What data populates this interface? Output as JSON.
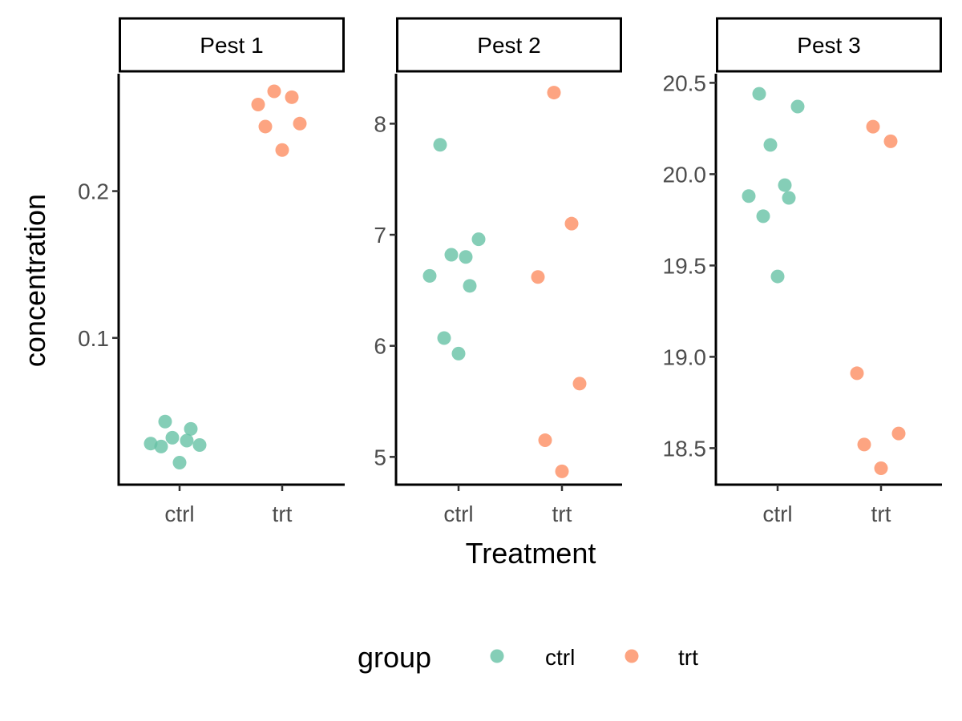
{
  "chart_data": {
    "type": "scatter",
    "xlabel": "Treatment",
    "ylabel": "concentration",
    "categories": [
      "ctrl",
      "trt"
    ],
    "colors": {
      "ctrl": "#66c2a5",
      "trt": "#fc8d62"
    },
    "legend": {
      "title": "group",
      "position": "bottom",
      "entries": [
        {
          "label": "ctrl",
          "color": "#66c2a5"
        },
        {
          "label": "trt",
          "color": "#fc8d62"
        }
      ]
    },
    "grid": false,
    "panels": [
      {
        "title": "Pest 1",
        "ylim": [
          0.0,
          0.28
        ],
        "yticks": [
          {
            "value": 0.1,
            "label": "0.1"
          },
          {
            "value": 0.2,
            "label": "0.2"
          }
        ],
        "series": [
          {
            "name": "ctrl",
            "points": [
              {
                "x": "ctrl",
                "y": 0.028
              },
              {
                "x": "ctrl",
                "y": 0.026
              },
              {
                "x": "ctrl",
                "y": 0.043
              },
              {
                "x": "ctrl",
                "y": 0.032
              },
              {
                "x": "ctrl",
                "y": 0.015
              },
              {
                "x": "ctrl",
                "y": 0.03
              },
              {
                "x": "ctrl",
                "y": 0.038
              },
              {
                "x": "ctrl",
                "y": 0.027
              }
            ]
          },
          {
            "name": "trt",
            "points": [
              {
                "x": "trt",
                "y": 0.259
              },
              {
                "x": "trt",
                "y": 0.244
              },
              {
                "x": "trt",
                "y": 0.268
              },
              {
                "x": "trt",
                "y": 0.228
              },
              {
                "x": "trt",
                "y": 0.264
              },
              {
                "x": "trt",
                "y": 0.246
              }
            ]
          }
        ]
      },
      {
        "title": "Pest 2",
        "ylim": [
          4.75,
          8.45
        ],
        "yticks": [
          {
            "value": 5,
            "label": "5"
          },
          {
            "value": 6,
            "label": "6"
          },
          {
            "value": 7,
            "label": "7"
          },
          {
            "value": 8,
            "label": "8"
          }
        ],
        "series": [
          {
            "name": "ctrl",
            "points": [
              {
                "x": "ctrl",
                "y": 6.63
              },
              {
                "x": "ctrl",
                "y": 7.81
              },
              {
                "x": "ctrl",
                "y": 6.07
              },
              {
                "x": "ctrl",
                "y": 6.82
              },
              {
                "x": "ctrl",
                "y": 5.93
              },
              {
                "x": "ctrl",
                "y": 6.8
              },
              {
                "x": "ctrl",
                "y": 6.54
              },
              {
                "x": "ctrl",
                "y": 6.96
              }
            ]
          },
          {
            "name": "trt",
            "points": [
              {
                "x": "trt",
                "y": 6.62
              },
              {
                "x": "trt",
                "y": 5.15
              },
              {
                "x": "trt",
                "y": 8.28
              },
              {
                "x": "trt",
                "y": 4.87
              },
              {
                "x": "trt",
                "y": 7.1
              },
              {
                "x": "trt",
                "y": 5.66
              }
            ]
          }
        ]
      },
      {
        "title": "Pest 3",
        "ylim": [
          18.3,
          20.55
        ],
        "yticks": [
          {
            "value": 18.5,
            "label": "18.5"
          },
          {
            "value": 19.0,
            "label": "19.0"
          },
          {
            "value": 19.5,
            "label": "19.5"
          },
          {
            "value": 20.0,
            "label": "20.0"
          },
          {
            "value": 20.5,
            "label": "20.5"
          }
        ],
        "series": [
          {
            "name": "ctrl",
            "points": [
              {
                "x": "ctrl",
                "y": 19.88
              },
              {
                "x": "ctrl",
                "y": 20.44
              },
              {
                "x": "ctrl",
                "y": 19.77
              },
              {
                "x": "ctrl",
                "y": 20.16
              },
              {
                "x": "ctrl",
                "y": 19.44
              },
              {
                "x": "ctrl",
                "y": 19.94
              },
              {
                "x": "ctrl",
                "y": 19.87
              },
              {
                "x": "ctrl",
                "y": 20.37
              }
            ]
          },
          {
            "name": "trt",
            "points": [
              {
                "x": "trt",
                "y": 18.91
              },
              {
                "x": "trt",
                "y": 18.52
              },
              {
                "x": "trt",
                "y": 20.26
              },
              {
                "x": "trt",
                "y": 18.39
              },
              {
                "x": "trt",
                "y": 20.18
              },
              {
                "x": "trt",
                "y": 18.58
              }
            ]
          }
        ]
      }
    ]
  }
}
